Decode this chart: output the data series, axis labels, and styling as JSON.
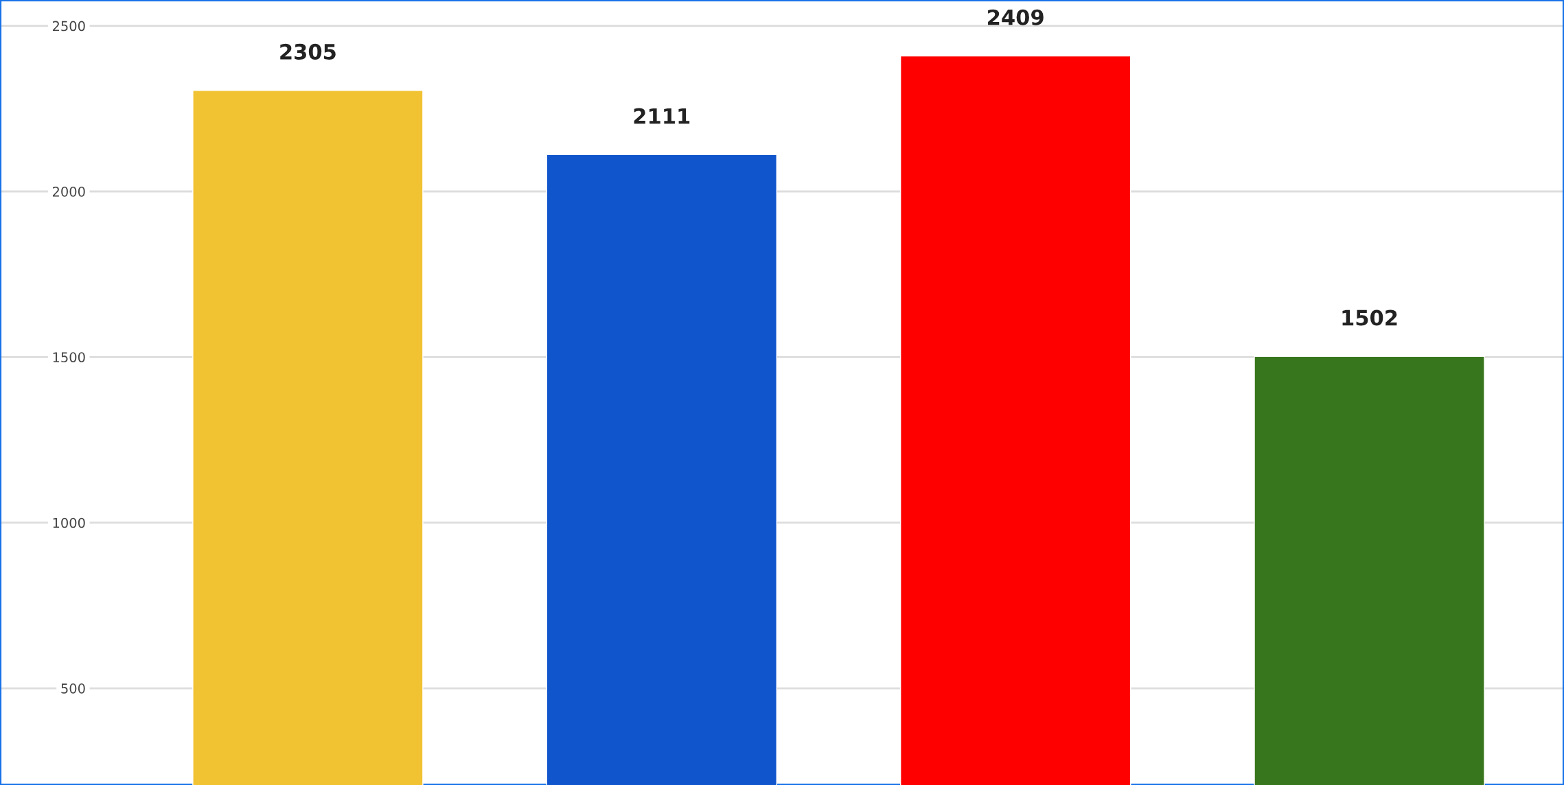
{
  "chart_data": {
    "type": "bar",
    "categories": [
      null,
      null,
      null,
      null
    ],
    "values": [
      2305,
      2111,
      2409,
      1502
    ],
    "colors": [
      "#f1c232",
      "#1155cc",
      "#ff0000",
      "#38761d"
    ],
    "ylim": [
      208,
      2578
    ],
    "yticks": [
      500,
      1000,
      1500,
      2000,
      2500
    ],
    "grid": "y",
    "data_labels": true
  }
}
